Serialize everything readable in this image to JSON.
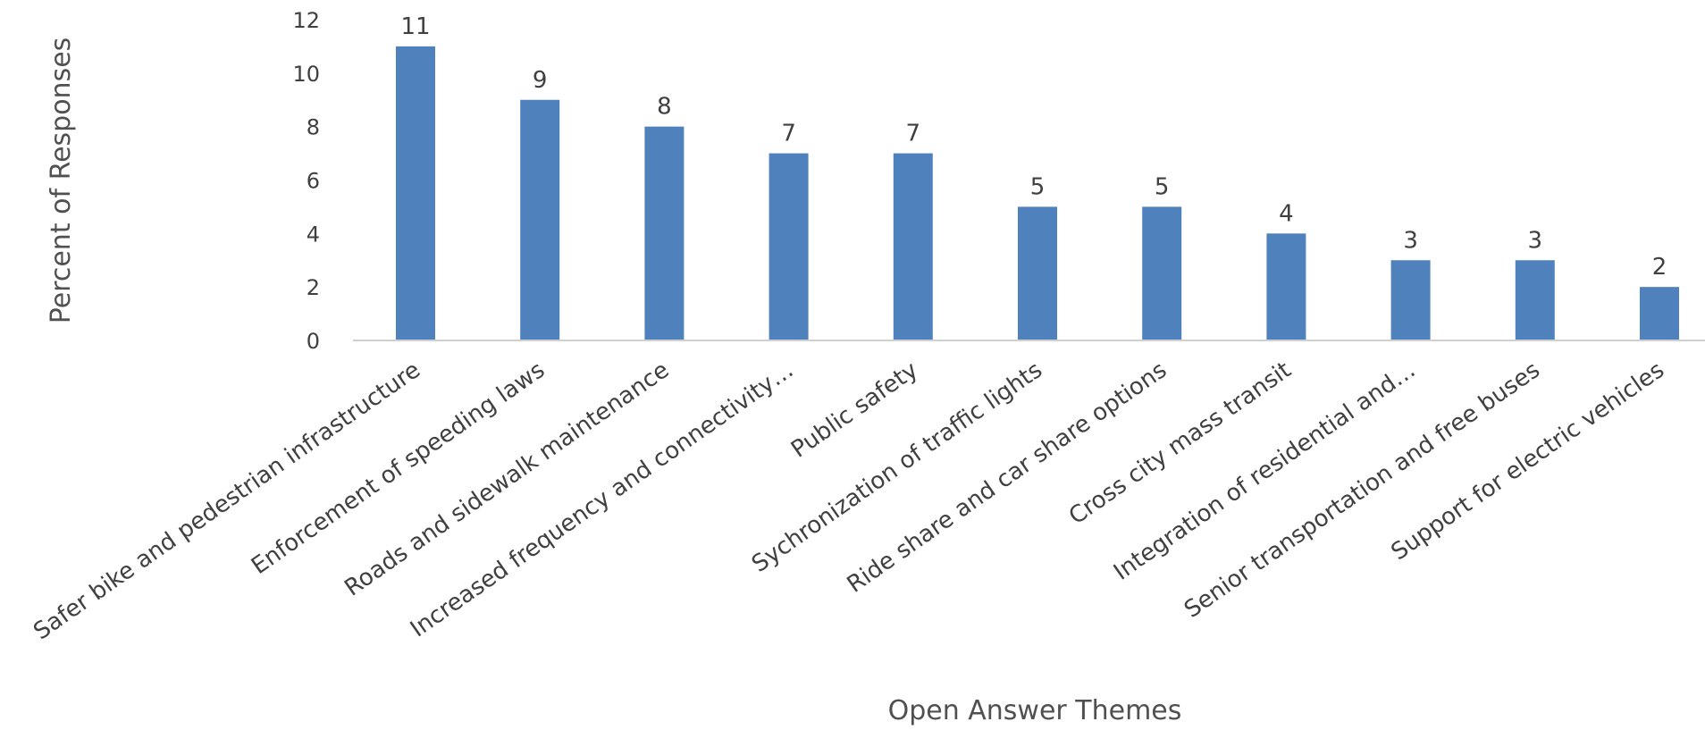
{
  "chart_data": {
    "type": "bar",
    "title": "",
    "xlabel": "Open Answer Themes",
    "ylabel": "Percent of Responses",
    "ylim": [
      0,
      12
    ],
    "yticks": [
      0,
      2,
      4,
      6,
      8,
      10,
      12
    ],
    "grid": false,
    "legend": "none",
    "bar_color": "#4f81bd",
    "categories": [
      "Safer bike and pedestrian infrastructure",
      "Enforcement of speeding laws",
      "Roads and sidewalk maintenance",
      "Increased frequency and connectivity…",
      "Public safety",
      "Sychronization of traffic lights",
      "Ride share and car share options",
      "Cross city mass transit",
      "Integration of residential and…",
      "Senior transportation and free buses",
      "Support for electric vehicles"
    ],
    "values": [
      11,
      9,
      8,
      7,
      7,
      5,
      5,
      4,
      3,
      3,
      2
    ]
  }
}
